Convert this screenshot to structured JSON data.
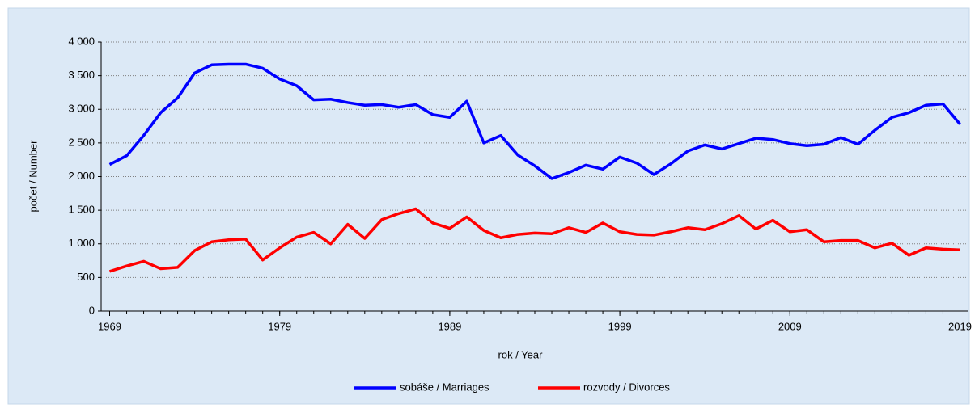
{
  "chart_data": {
    "type": "line",
    "xlabel": "rok / Year",
    "ylabel": "počet / Number",
    "x": [
      1969,
      1970,
      1971,
      1972,
      1973,
      1974,
      1975,
      1976,
      1977,
      1978,
      1979,
      1980,
      1981,
      1982,
      1983,
      1984,
      1985,
      1986,
      1987,
      1988,
      1989,
      1990,
      1991,
      1992,
      1993,
      1994,
      1995,
      1996,
      1997,
      1998,
      1999,
      2000,
      2001,
      2002,
      2003,
      2004,
      2005,
      2006,
      2007,
      2008,
      2009,
      2010,
      2011,
      2012,
      2013,
      2014,
      2015,
      2016,
      2017,
      2018,
      2019
    ],
    "series": [
      {
        "name": "sobáše / Marriages",
        "color": "#0000ff",
        "values": [
          2180,
          2310,
          2610,
          2950,
          3170,
          3540,
          3660,
          3670,
          3670,
          3610,
          3450,
          3350,
          3140,
          3150,
          3100,
          3060,
          3070,
          3030,
          3070,
          2920,
          2880,
          3120,
          2500,
          2610,
          2320,
          2160,
          1970,
          2060,
          2170,
          2110,
          2290,
          2200,
          2030,
          2190,
          2380,
          2470,
          2410,
          2490,
          2570,
          2550,
          2490,
          2460,
          2480,
          2580,
          2480,
          2690,
          2880,
          2950,
          3060,
          3080,
          2780
        ]
      },
      {
        "name": "rozvody / Divorces",
        "color": "#ff0000",
        "values": [
          590,
          670,
          740,
          630,
          650,
          900,
          1030,
          1060,
          1070,
          760,
          940,
          1100,
          1170,
          1000,
          1290,
          1080,
          1360,
          1450,
          1520,
          1310,
          1230,
          1400,
          1200,
          1090,
          1140,
          1160,
          1150,
          1240,
          1170,
          1310,
          1180,
          1140,
          1130,
          1180,
          1240,
          1210,
          1300,
          1420,
          1220,
          1350,
          1180,
          1210,
          1030,
          1050,
          1050,
          940,
          1010,
          830,
          940,
          920,
          910
        ]
      }
    ],
    "xlim": [
      1968.5,
      2019.5
    ],
    "xticks": [
      1969,
      1979,
      1989,
      1999,
      2009,
      2019
    ],
    "ylim": [
      0,
      4000
    ],
    "yticks": [
      0,
      500,
      {
        "value": 1000,
        "label": "1 000"
      },
      {
        "value": 1500,
        "label": "1 500"
      },
      {
        "value": 2000,
        "label": "2 000"
      },
      {
        "value": 2500,
        "label": "2 500"
      },
      {
        "value": 3000,
        "label": "3 000"
      },
      {
        "value": 3500,
        "label": "3 500"
      },
      {
        "value": 4000,
        "label": "4 000"
      }
    ],
    "grid": true,
    "legend": "bottom"
  }
}
